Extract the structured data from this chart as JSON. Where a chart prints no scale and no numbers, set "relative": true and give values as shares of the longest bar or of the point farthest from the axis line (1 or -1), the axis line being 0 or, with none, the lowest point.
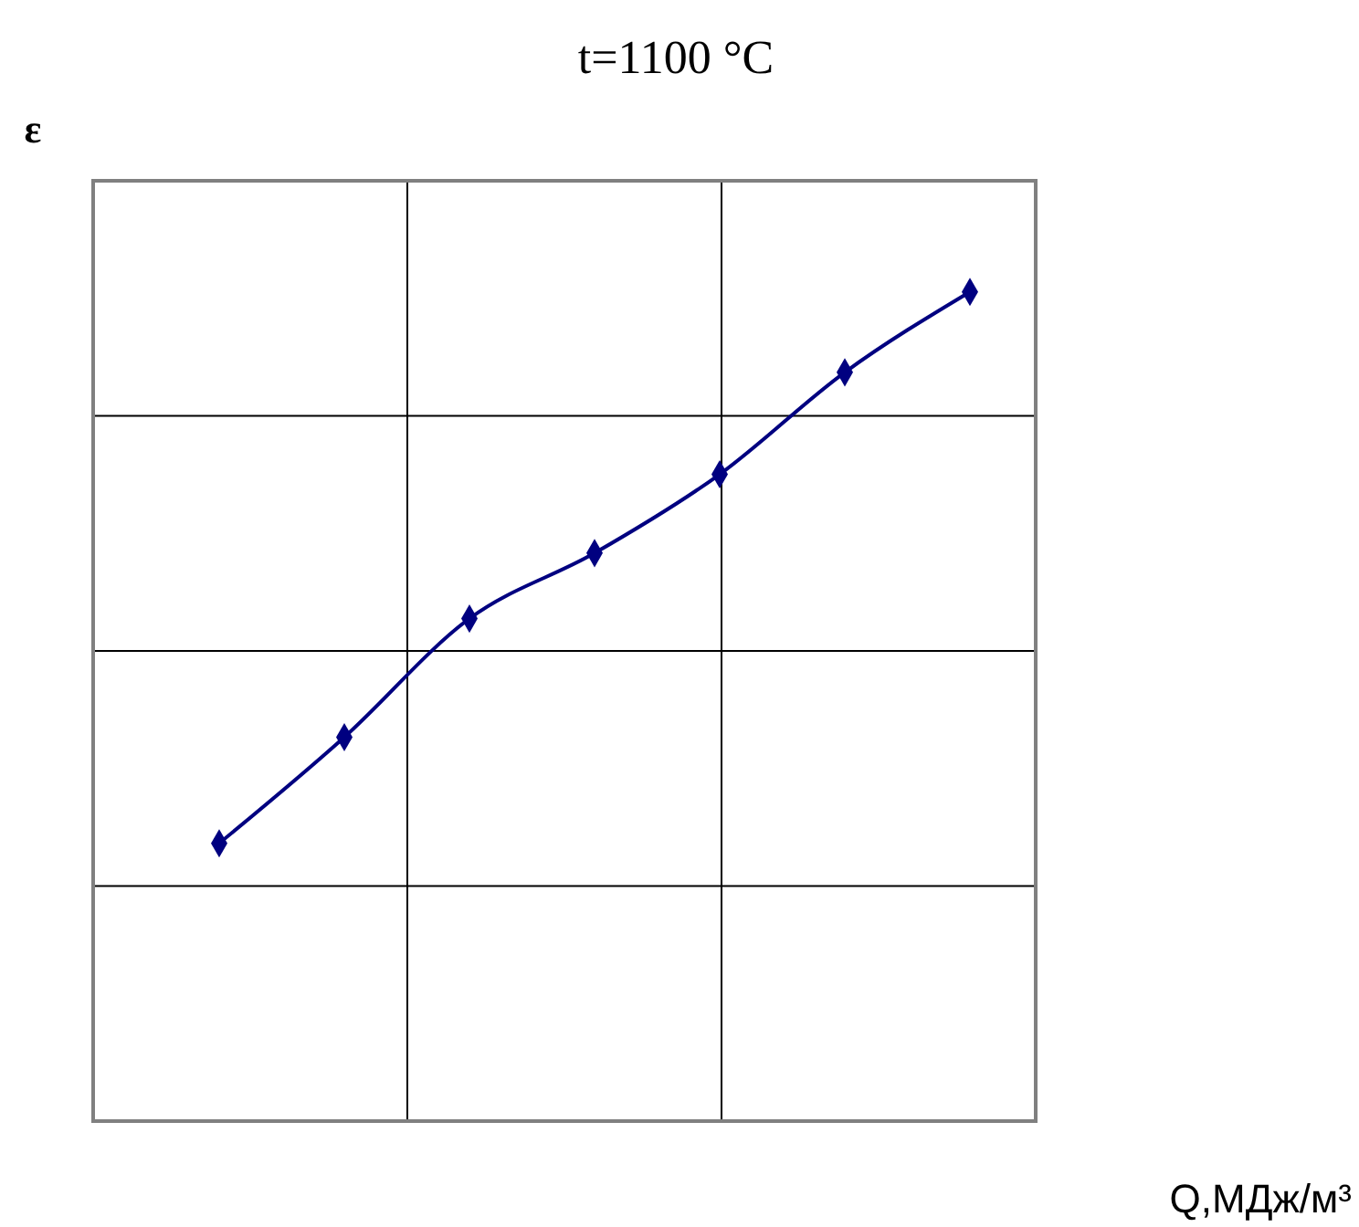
{
  "chart_data": {
    "type": "line",
    "title": "t=1100 °C",
    "ylabel": "ε",
    "xlabel": "Q,МДж/м³",
    "relative": true,
    "grid": true,
    "marker": "diamond",
    "line_style": "solid",
    "categories": [
      null,
      null,
      null,
      null,
      null,
      null,
      null
    ],
    "series": [
      {
        "color": "#000080",
        "values": [
          0.335,
          0.463,
          0.606,
          0.685,
          0.78,
          0.903,
          1
        ]
      }
    ]
  }
}
